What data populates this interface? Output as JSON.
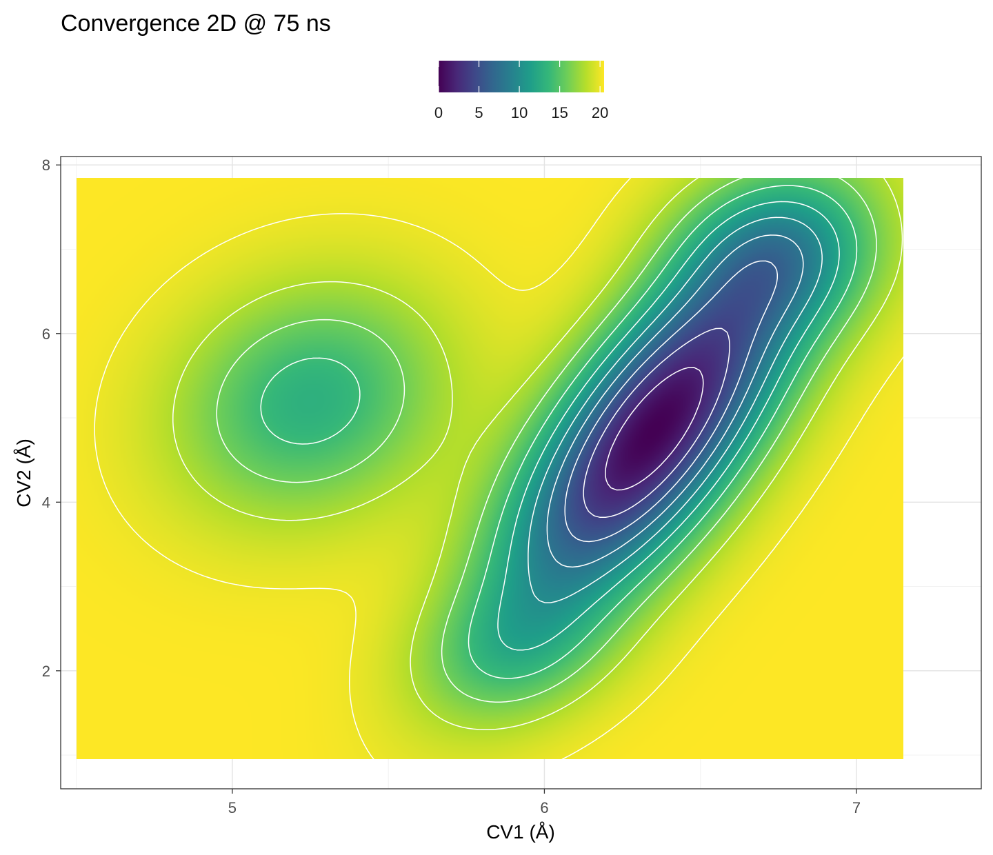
{
  "chart_data": {
    "type": "heatmap",
    "title": "Convergence 2D @ 75 ns",
    "xlabel": "CV1 (Å)",
    "ylabel": "CV2 (Å)",
    "xlim": [
      4.45,
      7.4
    ],
    "ylim": [
      0.6,
      8.1
    ],
    "x_ticks": [
      5,
      6,
      7
    ],
    "y_ticks": [
      2,
      4,
      6,
      8
    ],
    "x_tick_labels": [
      "5",
      "6",
      "7"
    ],
    "y_tick_labels": [
      "2",
      "4",
      "6",
      "8"
    ],
    "data_extent": {
      "x": [
        4.5,
        7.15
      ],
      "y": [
        0.95,
        7.85
      ]
    },
    "colorbar": {
      "palette": "viridis",
      "range": [
        0,
        20.5
      ],
      "ticks": [
        0,
        5,
        10,
        15,
        20
      ],
      "tick_labels": [
        "0",
        "5",
        "10",
        "15",
        "20"
      ],
      "placement": "top"
    },
    "contour_levels": [
      2,
      4,
      6,
      8,
      10,
      12,
      14,
      16,
      18,
      20
    ],
    "contour_color": "#ffffff",
    "grid": true,
    "energy_landscape": {
      "cap": 20.5,
      "wells": [
        {
          "x": 6.35,
          "y": 4.85,
          "sx": 0.48,
          "sy": 2.2,
          "rho": 0.72,
          "depth": 20.5
        },
        {
          "x": 5.25,
          "y": 5.2,
          "sx": 0.42,
          "sy": 1.35,
          "rho": 0.15,
          "depth": 7.5
        },
        {
          "x": 6.75,
          "y": 7.0,
          "sx": 0.32,
          "sy": 0.9,
          "rho": 0.0,
          "depth": 6.0
        },
        {
          "x": 5.9,
          "y": 2.2,
          "sx": 0.3,
          "sy": 0.8,
          "rho": 0.2,
          "depth": 3.5
        }
      ]
    }
  }
}
